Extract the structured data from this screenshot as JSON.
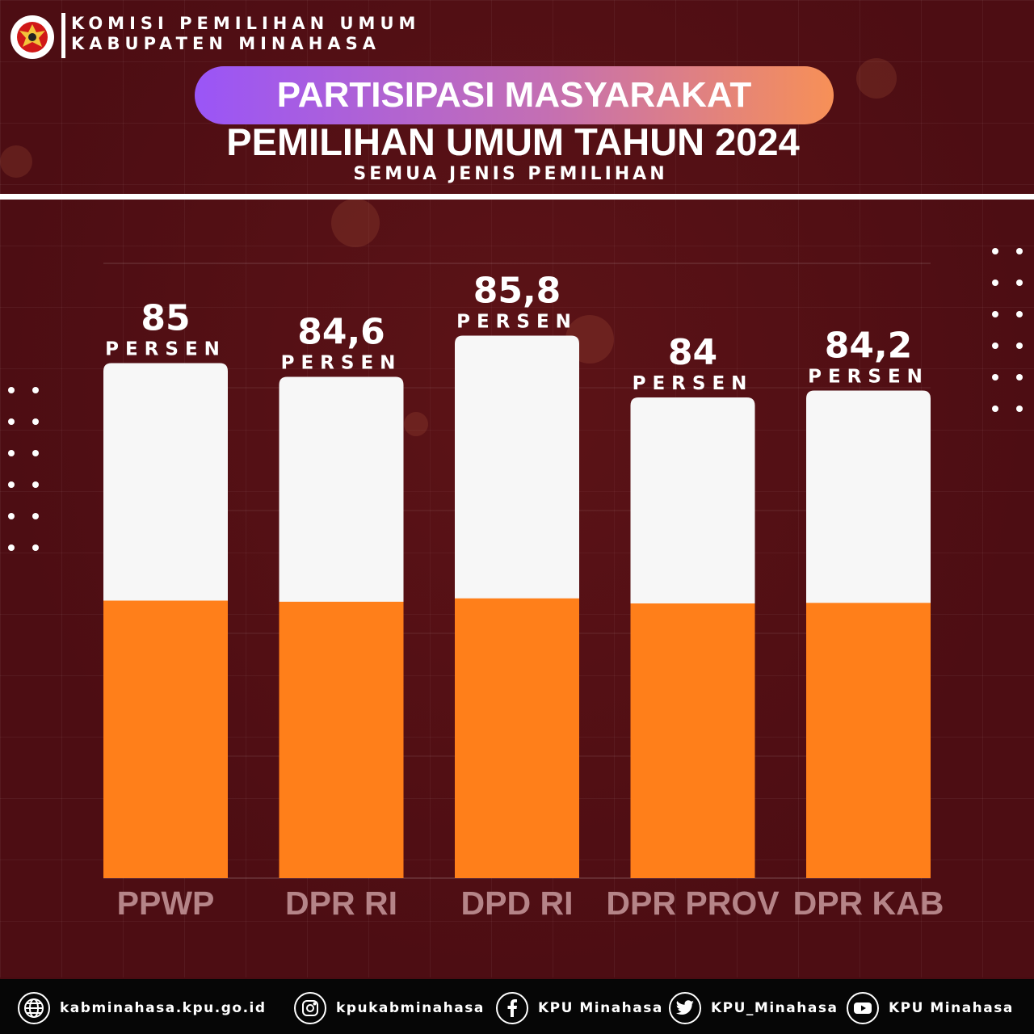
{
  "header": {
    "org_line_1": "KOMISI PEMILIHAN UMUM",
    "org_line_2": "KABUPATEN MINAHASA",
    "logo_text_top": "KOMISI",
    "logo_text_bottom": "PEMILIHAN UMUM",
    "title": "PARTISIPASI MASYARAKAT",
    "subtitle": "PEMILIHAN UMUM TAHUN 2024",
    "caption": "SEMUA JENIS PEMILIHAN"
  },
  "colors": {
    "background": "#4d0d13",
    "bar_fill": "#ff7f1a",
    "bar_track": "#f7f7f7",
    "category_label": "#b58488",
    "pill_start": "#9a55f7",
    "pill_end": "#f79057"
  },
  "chart_data": {
    "type": "bar",
    "categories": [
      "PPWP",
      "DPR RI",
      "DPD RI",
      "DPR PROV",
      "DPR KAB"
    ],
    "values": [
      85,
      84.6,
      85.8,
      84,
      84.2
    ],
    "value_labels": [
      "85",
      "84,6",
      "85,8",
      "84",
      "84,2"
    ],
    "unit_label": "PERSEN",
    "title": "PARTISIPASI MASYARAKAT",
    "xlabel": "",
    "ylabel": "",
    "grid": true,
    "legend": "none"
  },
  "footer": {
    "items": [
      {
        "icon": "globe-icon",
        "label": "kabminahasa.kpu.go.id"
      },
      {
        "icon": "instagram-icon",
        "label": "kpukabminahasa"
      },
      {
        "icon": "facebook-icon",
        "label": "KPU Minahasa"
      },
      {
        "icon": "twitter-icon",
        "label": "KPU_Minahasa"
      },
      {
        "icon": "youtube-icon",
        "label": "KPU Minahasa"
      }
    ]
  }
}
